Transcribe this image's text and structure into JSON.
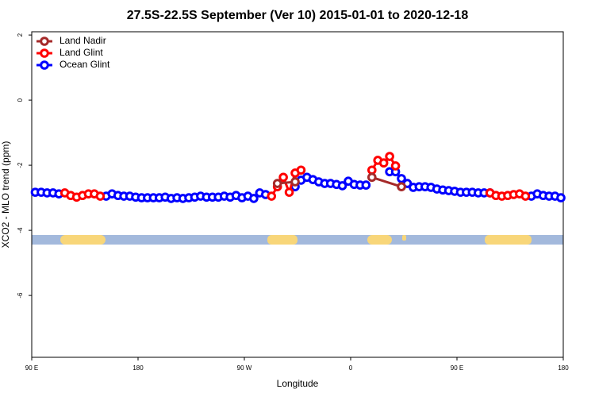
{
  "chart_data": {
    "type": "line",
    "title": "27.5S-22.5S September (Ver 10)   2015-01-01 to 2020-12-18",
    "x_label": "Longitude",
    "y_label": "XCO2 - MLO trend (ppm)",
    "xlim": [
      90,
      540
    ],
    "ylim": [
      -7.9,
      2.1
    ],
    "xticks": [
      {
        "value": 90,
        "label": "90 E"
      },
      {
        "value": 180,
        "label": "180"
      },
      {
        "value": 270,
        "label": "90 W"
      },
      {
        "value": 360,
        "label": "0"
      },
      {
        "value": 450,
        "label": "90 E"
      },
      {
        "value": 540,
        "label": "180"
      }
    ],
    "yticks": [
      2,
      0,
      -2,
      -4,
      -6
    ],
    "legend": "top-left",
    "series": [
      {
        "name": "Land Nadir",
        "color": "#a52a2a",
        "x": [
          298,
          313,
          null,
          378,
          403
        ],
        "values": [
          -2.56,
          -2.51,
          null,
          -2.37,
          -2.66
        ]
      },
      {
        "name": "Land Glint",
        "color": "#ff0000",
        "x": [
          118,
          123,
          128,
          133,
          138,
          143,
          148,
          null,
          293,
          298,
          303,
          308,
          313,
          318,
          null,
          378,
          383,
          388,
          393,
          398,
          null,
          478,
          483,
          488,
          493,
          498,
          503,
          508
        ],
        "values": [
          -2.85,
          -2.93,
          -2.98,
          -2.93,
          -2.88,
          -2.88,
          -2.95,
          null,
          -2.95,
          -2.66,
          -2.37,
          -2.83,
          -2.24,
          -2.15,
          null,
          -2.15,
          -1.85,
          -1.93,
          -1.73,
          -2.02,
          null,
          -2.85,
          -2.93,
          -2.95,
          -2.93,
          -2.9,
          -2.88,
          -2.95
        ]
      },
      {
        "name": "Ocean Glint",
        "color": "#0000ff",
        "x": [
          93,
          98,
          103,
          108,
          113,
          null,
          153,
          158,
          163,
          168,
          173,
          178,
          183,
          188,
          193,
          198,
          203,
          208,
          213,
          218,
          223,
          228,
          233,
          238,
          243,
          248,
          253,
          258,
          263,
          268,
          273,
          278,
          283,
          288,
          null,
          313,
          318,
          323,
          328,
          333,
          338,
          343,
          348,
          353,
          358,
          363,
          368,
          373,
          null,
          393,
          398,
          403,
          408,
          413,
          418,
          423,
          428,
          433,
          438,
          443,
          448,
          453,
          458,
          463,
          468,
          473,
          478,
          null,
          513,
          518,
          523,
          528,
          533,
          538
        ],
        "values": [
          -2.83,
          -2.83,
          -2.85,
          -2.85,
          -2.88,
          null,
          -2.95,
          -2.88,
          -2.93,
          -2.95,
          -2.95,
          -2.98,
          -3.0,
          -3.0,
          -3.0,
          -3.0,
          -2.98,
          -3.02,
          -3.0,
          -3.02,
          -3.0,
          -2.98,
          -2.95,
          -2.98,
          -2.98,
          -2.98,
          -2.95,
          -2.98,
          -2.93,
          -3.0,
          -2.95,
          -3.02,
          -2.85,
          -2.9,
          null,
          -2.66,
          -2.46,
          -2.37,
          -2.44,
          -2.51,
          -2.56,
          -2.56,
          -2.59,
          -2.63,
          -2.49,
          -2.59,
          -2.61,
          -2.61,
          null,
          -2.2,
          -2.2,
          -2.41,
          -2.56,
          -2.68,
          -2.66,
          -2.66,
          -2.68,
          -2.73,
          -2.76,
          -2.78,
          -2.8,
          -2.83,
          -2.83,
          -2.83,
          -2.85,
          -2.85,
          -2.85,
          null,
          -2.95,
          -2.88,
          -2.93,
          -2.95,
          -2.95,
          -3.0
        ]
      }
    ]
  }
}
